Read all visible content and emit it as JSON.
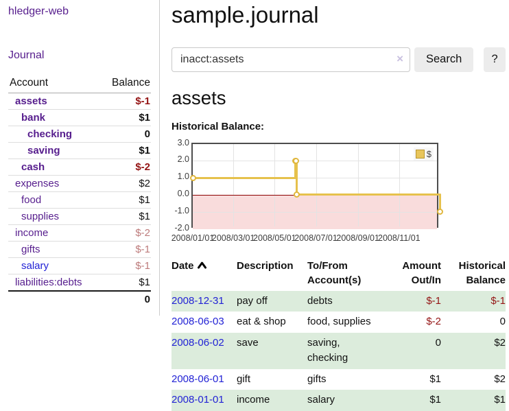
{
  "app": {
    "title": "hledger-web"
  },
  "sidebar": {
    "journal_link": "Journal",
    "table": {
      "account_header": "Account",
      "balance_header": "Balance",
      "rows": [
        {
          "name": "assets",
          "depth": 0,
          "bold": true,
          "balance": "$-1",
          "balance_tone": "strong"
        },
        {
          "name": "bank",
          "depth": 1,
          "bold": true,
          "balance": "$1",
          "balance_tone": ""
        },
        {
          "name": "checking",
          "depth": 2,
          "bold": true,
          "balance": "0",
          "balance_tone": ""
        },
        {
          "name": "saving",
          "depth": 2,
          "bold": true,
          "balance": "$1",
          "balance_tone": ""
        },
        {
          "name": "cash",
          "depth": 1,
          "bold": true,
          "balance": "$-2",
          "balance_tone": "strong"
        },
        {
          "name": "expenses",
          "depth": 0,
          "bold": false,
          "balance": "$2",
          "balance_tone": ""
        },
        {
          "name": "food",
          "depth": 1,
          "bold": false,
          "balance": "$1",
          "balance_tone": ""
        },
        {
          "name": "supplies",
          "depth": 1,
          "bold": false,
          "balance": "$1",
          "balance_tone": ""
        },
        {
          "name": "income",
          "depth": 0,
          "bold": false,
          "balance": "$-2",
          "balance_tone": "soft"
        },
        {
          "name": "gifts",
          "depth": 1,
          "bold": false,
          "balance": "$-1",
          "balance_tone": "soft"
        },
        {
          "name": "salary",
          "depth": 1,
          "bold": false,
          "balance": "$-1",
          "balance_tone": "soft",
          "link_color": "blue"
        },
        {
          "name": "liabilities:debts",
          "depth": 0,
          "bold": false,
          "balance": "$1",
          "balance_tone": ""
        }
      ],
      "total": "0"
    }
  },
  "main": {
    "title": "sample.journal",
    "search": {
      "value": "inacct:assets",
      "clear_icon": "×",
      "button_label": "Search",
      "help_label": "?"
    },
    "account_heading": "assets",
    "chart_label": "Historical Balance:"
  },
  "chart_data": {
    "type": "line",
    "step": true,
    "title": "Historical Balance",
    "series": [
      {
        "name": "$",
        "color": "#e6c14c",
        "x": [
          "2008-01-01",
          "2008-06-01",
          "2008-06-02",
          "2008-06-03",
          "2008-12-31"
        ],
        "values": [
          1,
          2,
          2,
          0,
          -1
        ]
      }
    ],
    "x_range": [
      "2008-01-01",
      "2008-12-31"
    ],
    "ylim": [
      -2,
      3
    ],
    "ytick_labels": [
      "3.0",
      "2.0",
      "1.0",
      "0.0",
      "-1.0",
      "-2.0"
    ],
    "xtick_labels": [
      "2008/01/01",
      "2008/03/01",
      "2008/05/01",
      "2008/07/01",
      "2008/09/01",
      "2008/11/01"
    ],
    "grid": true,
    "marker": "open-circle",
    "legend": {
      "position": "top-right",
      "label": "$",
      "swatch_color": "#e8c55b",
      "swatch_border": "#b8952e"
    },
    "negative_region_color": "#f9dcdc",
    "zero_line_color": "#8b0000"
  },
  "register": {
    "headers": {
      "date": "Date",
      "description": "Description",
      "accounts": "To/From Account(s)",
      "amount": "Amount Out/In",
      "balance": "Historical Balance"
    },
    "rows": [
      {
        "date": "2008-12-31",
        "description": "pay off",
        "accounts": "debts",
        "amount": "$-1",
        "amount_neg": true,
        "balance": "$-1",
        "balance_neg": true
      },
      {
        "date": "2008-06-03",
        "description": "eat & shop",
        "accounts": "food, supplies",
        "amount": "$-2",
        "amount_neg": true,
        "balance": "0",
        "balance_neg": false
      },
      {
        "date": "2008-06-02",
        "description": "save",
        "accounts": "saving, checking",
        "amount": "0",
        "amount_neg": false,
        "balance": "$2",
        "balance_neg": false
      },
      {
        "date": "2008-06-01",
        "description": "gift",
        "accounts": "gifts",
        "amount": "$1",
        "amount_neg": false,
        "balance": "$2",
        "balance_neg": false
      },
      {
        "date": "2008-01-01",
        "description": "income",
        "accounts": "salary",
        "amount": "$1",
        "amount_neg": false,
        "balance": "$1",
        "balance_neg": false
      }
    ]
  }
}
